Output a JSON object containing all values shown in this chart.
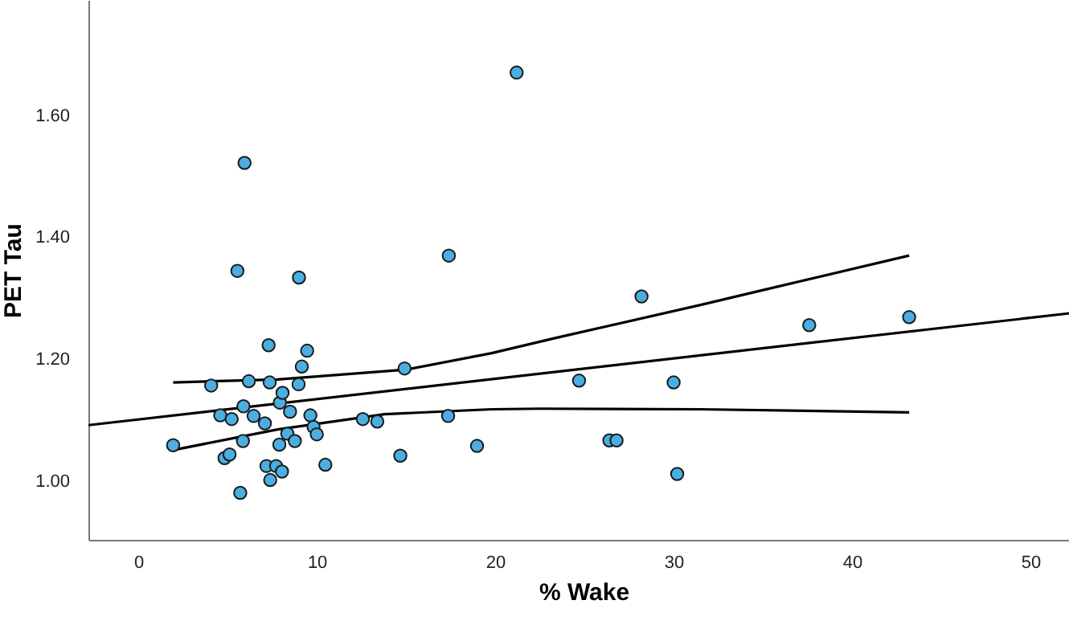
{
  "chart_data": {
    "type": "scatter",
    "xlabel": "% Wake",
    "ylabel": "PET Tau",
    "xlim": [
      -2.8,
      52.7
    ],
    "ylim": [
      0.904,
      1.789
    ],
    "xticks": [
      0,
      10,
      20,
      30,
      40,
      50
    ],
    "yticks": [
      {
        "value": 1,
        "label": "1.00"
      },
      {
        "value": 1.2,
        "label": "1.20"
      },
      {
        "value": 1.4,
        "label": "1.40"
      },
      {
        "value": 1.6,
        "label": "1.60"
      }
    ],
    "grid": false,
    "series": [
      {
        "color": "#4aaee0",
        "marker": "circle",
        "x": [
          21.2,
          5.95,
          5.55,
          9.0,
          17.4,
          28.2,
          37.6,
          43.2,
          24.7,
          30.0,
          26.4,
          26.8,
          30.2,
          1.95,
          4.08,
          4.59,
          5.23,
          4.83,
          5.11,
          5.71,
          5.89,
          5.86,
          6.19,
          6.46,
          7.09,
          7.3,
          7.36,
          7.18,
          7.39,
          7.72,
          8.05,
          7.9,
          7.93,
          8.08,
          8.35,
          8.5,
          8.77,
          8.98,
          9.16,
          9.46,
          9.64,
          9.82,
          10.0,
          10.48,
          12.58,
          13.39,
          14.92,
          14.68,
          17.36,
          18.98
        ],
        "values": [
          1.67,
          1.522,
          1.345,
          1.334,
          1.37,
          1.303,
          1.256,
          1.269,
          1.165,
          1.162,
          1.067,
          1.067,
          1.012,
          1.059,
          1.157,
          1.108,
          1.102,
          1.038,
          1.044,
          0.981,
          1.123,
          1.066,
          1.164,
          1.107,
          1.095,
          1.223,
          1.162,
          1.025,
          1.002,
          1.025,
          1.016,
          1.06,
          1.129,
          1.145,
          1.078,
          1.114,
          1.066,
          1.159,
          1.188,
          1.214,
          1.108,
          1.089,
          1.077,
          1.027,
          1.102,
          1.098,
          1.185,
          1.042,
          1.107,
          1.058
        ]
      },
      {
        "type": "line",
        "color": "#000000",
        "line_style": "solid",
        "x": [
          -2.8,
          52.7
        ],
        "values": [
          1.092,
          1.277
        ]
      },
      {
        "type": "line",
        "color": "#000000",
        "line_style": "solid",
        "x": [
          1.95,
          7.8,
          15,
          19.8,
          23.4,
          31.5,
          35.1,
          43.2
        ],
        "values": [
          1.162,
          1.167,
          1.183,
          1.21,
          1.235,
          1.289,
          1.314,
          1.37
        ]
      },
      {
        "type": "line",
        "color": "#000000",
        "line_style": "solid",
        "x": [
          2.1,
          7.8,
          13.8,
          19.8,
          22.5,
          31.5,
          43.2
        ],
        "values": [
          1.052,
          1.085,
          1.11,
          1.118,
          1.119,
          1.118,
          1.113
        ]
      }
    ]
  }
}
